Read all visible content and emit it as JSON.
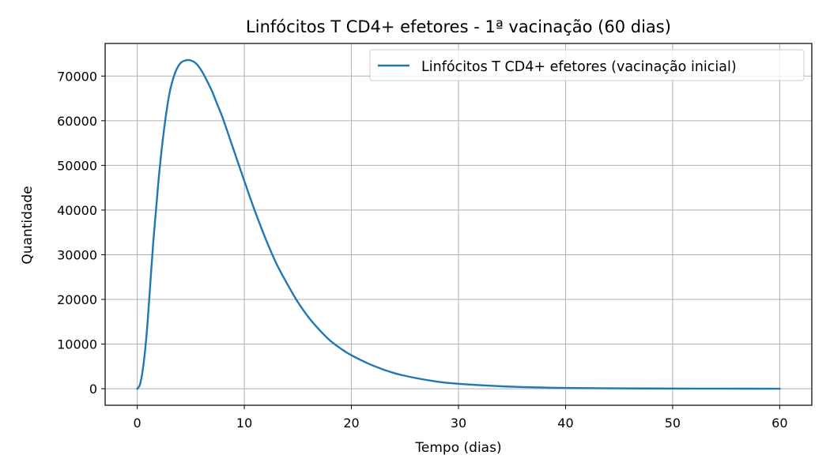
{
  "chart_data": {
    "type": "line",
    "title": "Linfócitos T CD4+ efetores - 1ª vacinação (60 dias)",
    "xlabel": "Tempo (dias)",
    "ylabel": "Quantidade",
    "xlim": [
      -3,
      63
    ],
    "ylim": [
      -3700,
      77300
    ],
    "xticks": [
      0,
      10,
      20,
      30,
      40,
      50,
      60
    ],
    "yticks": [
      0,
      10000,
      20000,
      30000,
      40000,
      50000,
      60000,
      70000
    ],
    "grid": true,
    "legend_position": "top-right",
    "series": [
      {
        "name": "Linfócitos T CD4+ efetores (vacinação inicial)",
        "color": "#1f77b4",
        "x": [
          0,
          0.25,
          0.5,
          0.75,
          1,
          1.5,
          2,
          2.5,
          3,
          3.5,
          4,
          4.5,
          5,
          5.5,
          6,
          6.5,
          7,
          7.5,
          8,
          9,
          10,
          11,
          12,
          13,
          14,
          15,
          16,
          17,
          18,
          19,
          20,
          22,
          24,
          26,
          28,
          30,
          32,
          34,
          36,
          38,
          40,
          45,
          50,
          55,
          60
        ],
        "y": [
          0,
          900,
          4000,
          9000,
          16000,
          33000,
          47000,
          58000,
          66000,
          70500,
          72800,
          73500,
          73500,
          72800,
          71200,
          69000,
          66500,
          63500,
          60500,
          53500,
          46500,
          39700,
          33500,
          28000,
          23500,
          19400,
          16000,
          13200,
          10800,
          9000,
          7500,
          5200,
          3500,
          2400,
          1600,
          1100,
          800,
          550,
          380,
          260,
          180,
          90,
          40,
          20,
          10
        ]
      }
    ]
  }
}
